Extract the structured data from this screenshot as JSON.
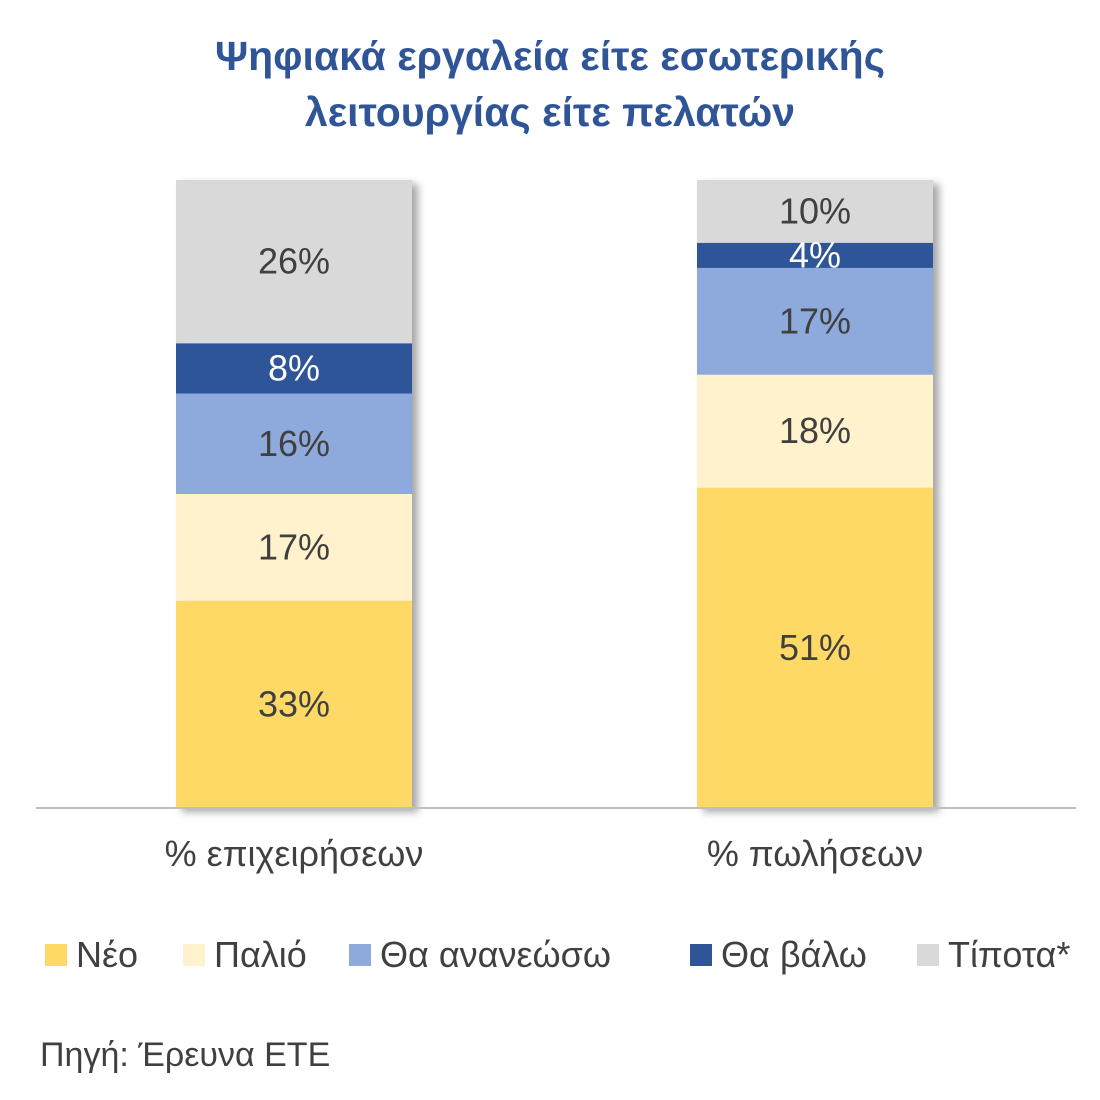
{
  "chart_data": {
    "type": "bar",
    "stacked": true,
    "title_lines": [
      "Ψηφιακά εργαλεία είτε εσωτερικής",
      "λειτουργίας είτε πελατών"
    ],
    "categories": [
      "% επιχειρήσεων",
      "% πωλήσεων"
    ],
    "series": [
      {
        "name": "Νέο",
        "color": "#FFD966",
        "label_color": "#404040",
        "values": [
          33,
          51
        ]
      },
      {
        "name": "Παλιό",
        "color": "#FFF2CC",
        "label_color": "#404040",
        "values": [
          17,
          18
        ]
      },
      {
        "name": "Θα ανανεώσω",
        "color": "#8EA9DB",
        "label_color": "#404040",
        "values": [
          16,
          17
        ]
      },
      {
        "name": "Θα βάλω",
        "color": "#2F5597",
        "label_color": "#FFFFFF",
        "values": [
          8,
          4
        ]
      },
      {
        "name": "Τίποτα*",
        "color": "#D9D9D9",
        "label_color": "#404040",
        "values": [
          26,
          10
        ]
      }
    ],
    "value_suffix": "%",
    "ylim": [
      0,
      100
    ],
    "xlabel": "",
    "ylabel": "",
    "grid": false,
    "legend_position": "bottom"
  },
  "source": "Πηγή: Έρευνα ΕΤΕ"
}
